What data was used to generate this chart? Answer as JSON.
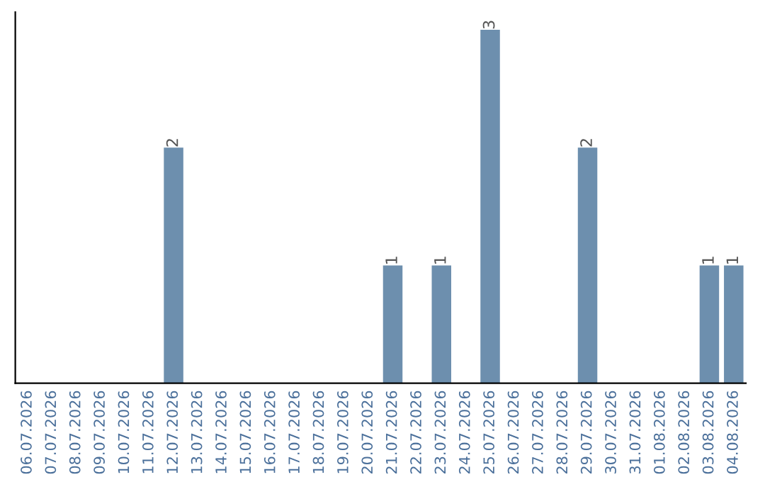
{
  "chart_data": {
    "type": "bar",
    "categories": [
      "06.07.2026",
      "07.07.2026",
      "08.07.2026",
      "09.07.2026",
      "10.07.2026",
      "11.07.2026",
      "12.07.2026",
      "13.07.2026",
      "14.07.2026",
      "15.07.2026",
      "16.07.2026",
      "17.07.2026",
      "18.07.2026",
      "19.07.2026",
      "20.07.2026",
      "21.07.2026",
      "22.07.2026",
      "23.07.2026",
      "24.07.2026",
      "25.07.2026",
      "26.07.2026",
      "27.07.2026",
      "28.07.2026",
      "29.07.2026",
      "30.07.2026",
      "31.07.2026",
      "01.08.2026",
      "02.08.2026",
      "03.08.2026",
      "04.08.2026"
    ],
    "values": [
      0,
      0,
      0,
      0,
      0,
      0,
      2,
      0,
      0,
      0,
      0,
      0,
      0,
      0,
      0,
      1,
      0,
      1,
      0,
      3,
      0,
      0,
      0,
      2,
      0,
      0,
      0,
      0,
      1,
      1
    ],
    "value_labels": [
      null,
      null,
      null,
      null,
      null,
      null,
      "2",
      null,
      null,
      null,
      null,
      null,
      null,
      null,
      null,
      "1",
      null,
      "1",
      null,
      "3",
      null,
      null,
      null,
      "2",
      null,
      null,
      null,
      null,
      "1",
      "1"
    ],
    "color": "#6d8fae",
    "ylim": [
      0,
      3.15
    ],
    "tick_labels": "x",
    "grid": false,
    "legend": false
  }
}
